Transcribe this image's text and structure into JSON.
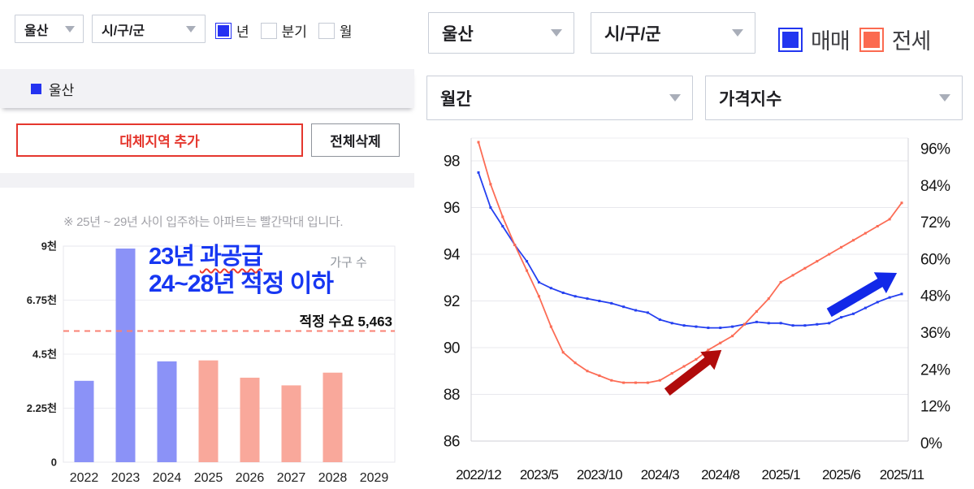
{
  "left_panel": {
    "region_select": {
      "value": "울산"
    },
    "district_select": {
      "value": "시/구/군"
    },
    "period_options": [
      {
        "label": "년",
        "checked": true
      },
      {
        "label": "분기",
        "checked": false
      },
      {
        "label": "월",
        "checked": false
      }
    ],
    "selected_regions": [
      {
        "label": "울산",
        "color": "#2433f0"
      }
    ],
    "add_region_button": "대체지역 추가",
    "clear_all_button": "전체삭제",
    "note": "※ 25년 ~ 29년 사이 입주하는 아파트는 빨간막대 입니다."
  },
  "right_panel": {
    "region_select": {
      "value": "울산"
    },
    "district_select": {
      "value": "시/구/군"
    },
    "frequency_select": {
      "value": "월간"
    },
    "metric_select": {
      "value": "가격지수"
    },
    "legend": [
      {
        "label": "매매",
        "color": "#2236f0"
      },
      {
        "label": "전세",
        "color": "#fb6a50"
      }
    ]
  },
  "chart_data": [
    {
      "id": "supply-bar-chart",
      "type": "bar",
      "unit_label": "가구 수",
      "categories": [
        "2022",
        "2023",
        "2024",
        "2025",
        "2026",
        "2027",
        "2028",
        "2029"
      ],
      "values": [
        3390,
        8900,
        4200,
        4240,
        3520,
        3200,
        3730,
        null
      ],
      "colors": [
        "#8b92f7",
        "#8b92f7",
        "#8b92f7",
        "#f9a89b",
        "#f9a89b",
        "#f9a89b",
        "#f9a89b",
        "#f9a89b"
      ],
      "ylim": [
        0,
        9000
      ],
      "yticks": [
        {
          "value": 0,
          "label": "0"
        },
        {
          "value": 2250,
          "label": "2.25천"
        },
        {
          "value": 4500,
          "label": "4.5천"
        },
        {
          "value": 6750,
          "label": "6.75천"
        },
        {
          "value": 9000,
          "label": "9천"
        }
      ],
      "reference_line": {
        "value": 5463,
        "label": "적정 수요 5,463",
        "color": "#f98274"
      },
      "annotation": {
        "line1_prefix": "23년 ",
        "line1_wavy": "과공급",
        "line2": "24~28년 적정 이하",
        "color": "#1737f2"
      }
    },
    {
      "id": "price-index-line-chart",
      "type": "line",
      "xticks": [
        {
          "month": 0,
          "label": "2022/12"
        },
        {
          "month": 5,
          "label": "2023/5"
        },
        {
          "month": 10,
          "label": "2023/10"
        },
        {
          "month": 15,
          "label": "2024/3"
        },
        {
          "month": 20,
          "label": "2024/8"
        },
        {
          "month": 25,
          "label": "2025/1"
        },
        {
          "month": 30,
          "label": "2025/6"
        },
        {
          "month": 35,
          "label": "2025/11"
        }
      ],
      "left_axis": {
        "lim": [
          86,
          99
        ],
        "ticks": [
          98,
          96,
          94,
          92,
          90,
          88,
          86
        ]
      },
      "right_axis": {
        "labels": [
          "96%",
          "84%",
          "72%",
          "60%",
          "48%",
          "36%",
          "24%",
          "12%",
          "0%"
        ]
      },
      "series": [
        {
          "name": "매매",
          "color": "#2540f0",
          "values": [
            97.5,
            96.0,
            95.2,
            94.4,
            93.7,
            92.8,
            92.55,
            92.35,
            92.2,
            92.1,
            92.0,
            91.9,
            91.75,
            91.6,
            91.5,
            91.2,
            91.05,
            90.95,
            90.9,
            90.85,
            90.85,
            90.9,
            91.0,
            91.1,
            91.05,
            91.05,
            90.95,
            90.95,
            91.0,
            91.05,
            91.3,
            91.45,
            91.7,
            91.95,
            92.15,
            92.3
          ]
        },
        {
          "name": "전세",
          "color": "#fc6c55",
          "values": [
            98.8,
            97.0,
            95.6,
            94.4,
            93.3,
            92.2,
            90.9,
            89.8,
            89.35,
            89.0,
            88.8,
            88.6,
            88.5,
            88.5,
            88.5,
            88.6,
            88.9,
            89.2,
            89.5,
            89.9,
            90.2,
            90.5,
            91.0,
            91.55,
            92.1,
            92.8,
            93.1,
            93.4,
            93.7,
            94.0,
            94.3,
            94.6,
            94.9,
            95.2,
            95.5,
            96.2
          ]
        }
      ],
      "arrows": [
        {
          "color": "#b00b0b",
          "from": {
            "month": 15.6,
            "value": 88.1
          },
          "to": {
            "month": 20.1,
            "value": 89.9
          }
        },
        {
          "color": "#1228e8",
          "from": {
            "month": 29.0,
            "value": 91.5
          },
          "to": {
            "month": 34.6,
            "value": 93.2
          }
        }
      ]
    }
  ]
}
